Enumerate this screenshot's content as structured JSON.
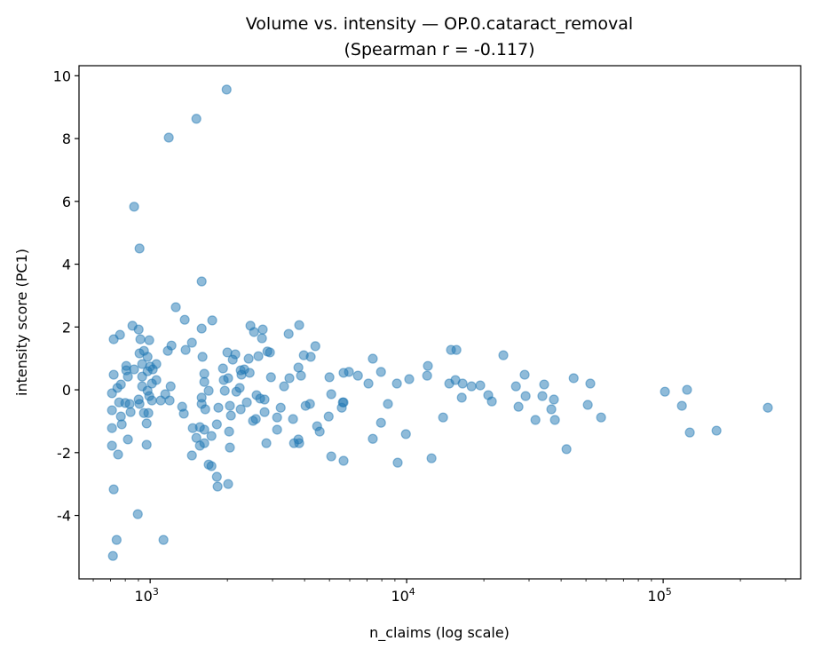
{
  "chart_data": {
    "type": "scatter",
    "title": "Volume vs. intensity — OP.0.cataract_removal",
    "subtitle": "(Spearman r = -0.117)",
    "xlabel": "n_claims (log scale)",
    "ylabel": "intensity score (PC1)",
    "xscale": "log",
    "xlim": [
      528,
      343600
    ],
    "ylim": [
      -6.02,
      10.32
    ],
    "xticks": [
      {
        "value": 1000,
        "base": "10",
        "exp": "3"
      },
      {
        "value": 10000,
        "base": "10",
        "exp": "4"
      },
      {
        "value": 100000,
        "base": "10",
        "exp": "5"
      }
    ],
    "yticks": [
      -4,
      -2,
      0,
      2,
      4,
      6,
      8,
      10
    ],
    "grid": false,
    "marker_color": "#1f77b4",
    "marker_alpha": 0.5,
    "points": [
      [
        1986,
        9.56
      ],
      [
        1514,
        8.63
      ],
      [
        1182,
        8.03
      ],
      [
        866,
        5.83
      ],
      [
        909,
        4.5
      ],
      [
        1588,
        3.45
      ],
      [
        1259,
        2.63
      ],
      [
        1364,
        2.23
      ],
      [
        1746,
        2.21
      ],
      [
        1588,
        1.95
      ],
      [
        853,
        2.04
      ],
      [
        902,
        1.92
      ],
      [
        721,
        1.61
      ],
      [
        763,
        1.75
      ],
      [
        916,
        1.61
      ],
      [
        992,
        1.58
      ],
      [
        1211,
        1.41
      ],
      [
        1172,
        1.24
      ],
      [
        1375,
        1.27
      ],
      [
        1455,
        1.5
      ],
      [
        1600,
        1.05
      ],
      [
        2460,
        2.04
      ],
      [
        2541,
        1.84
      ],
      [
        2748,
        1.92
      ],
      [
        2729,
        1.64
      ],
      [
        3467,
        1.78
      ],
      [
        3811,
        2.06
      ],
      [
        4406,
        1.39
      ],
      [
        3972,
        1.1
      ],
      [
        4227,
        1.05
      ],
      [
        2931,
        1.19
      ],
      [
        2864,
        1.22
      ],
      [
        2642,
        1.07
      ],
      [
        2421,
        0.99
      ],
      [
        2000,
        1.19
      ],
      [
        2148,
        1.13
      ],
      [
        2099,
        0.96
      ],
      [
        1923,
        0.68
      ],
      [
        2254,
        0.62
      ],
      [
        2328,
        0.65
      ],
      [
        2443,
        0.54
      ],
      [
        2270,
        0.48
      ],
      [
        2958,
        0.4
      ],
      [
        3491,
        0.37
      ],
      [
        3784,
        0.71
      ],
      [
        3873,
        0.45
      ],
      [
        3327,
        0.11
      ],
      [
        5000,
        0.4
      ],
      [
        5675,
        0.54
      ],
      [
        5082,
        -0.14
      ],
      [
        5636,
        -0.4
      ],
      [
        5585,
        -0.57
      ],
      [
        4966,
        -0.85
      ],
      [
        4198,
        -0.45
      ],
      [
        4036,
        -0.51
      ],
      [
        3606,
        -0.93
      ],
      [
        4477,
        -1.16
      ],
      [
        4581,
        -1.33
      ],
      [
        5082,
        -2.12
      ],
      [
        5675,
        -2.26
      ],
      [
        3784,
        -1.58
      ],
      [
        3639,
        -1.7
      ],
      [
        3811,
        -1.7
      ],
      [
        2838,
        -1.7
      ],
      [
        3126,
        -1.27
      ],
      [
        3126,
        -0.88
      ],
      [
        3228,
        -0.57
      ],
      [
        2793,
        -0.71
      ],
      [
        2600,
        -0.17
      ],
      [
        2685,
        -0.28
      ],
      [
        2793,
        -0.31
      ],
      [
        2582,
        -0.93
      ],
      [
        2518,
        -0.99
      ],
      [
        2382,
        -0.4
      ],
      [
        2254,
        -0.62
      ],
      [
        2168,
        -0.06
      ],
      [
        2234,
        0.06
      ],
      [
        1954,
        -0.03
      ],
      [
        2014,
        0.37
      ],
      [
        1936,
        0.31
      ],
      [
        2046,
        -0.51
      ],
      [
        2065,
        -0.82
      ],
      [
        2032,
        -1.33
      ],
      [
        2046,
        -1.84
      ],
      [
        1820,
        -1.1
      ],
      [
        1845,
        -0.57
      ],
      [
        1691,
        -0.03
      ],
      [
        1626,
        0.25
      ],
      [
        1626,
        0.51
      ],
      [
        1588,
        -0.25
      ],
      [
        1588,
        -0.45
      ],
      [
        1640,
        -0.62
      ],
      [
        1353,
        -0.76
      ],
      [
        1333,
        -0.54
      ],
      [
        1563,
        -1.19
      ],
      [
        1466,
        -1.22
      ],
      [
        1626,
        -1.27
      ],
      [
        1514,
        -1.53
      ],
      [
        1734,
        -1.47
      ],
      [
        1563,
        -1.78
      ],
      [
        1626,
        -1.7
      ],
      [
        1455,
        -2.09
      ],
      [
        1691,
        -2.38
      ],
      [
        1734,
        -2.43
      ],
      [
        1820,
        -2.77
      ],
      [
        1832,
        -3.08
      ],
      [
        2014,
        -3.0
      ],
      [
        1127,
        -4.78
      ],
      [
        895,
        -3.96
      ],
      [
        721,
        -3.17
      ],
      [
        740,
        -4.78
      ],
      [
        716,
        -5.29
      ],
      [
        721,
        0.48
      ],
      [
        710,
        -0.11
      ],
      [
        745,
        0.06
      ],
      [
        769,
        0.17
      ],
      [
        807,
        0.76
      ],
      [
        807,
        0.62
      ],
      [
        866,
        0.65
      ],
      [
        819,
        0.42
      ],
      [
        931,
        0.42
      ],
      [
        931,
        0.11
      ],
      [
        909,
        1.16
      ],
      [
        946,
        1.24
      ],
      [
        977,
        1.05
      ],
      [
        931,
        0.82
      ],
      [
        1000,
        0.74
      ],
      [
        1057,
        0.82
      ],
      [
        1024,
        0.65
      ],
      [
        977,
        0.59
      ],
      [
        1057,
        0.31
      ],
      [
        1016,
        0.2
      ],
      [
        977,
        -0.03
      ],
      [
        992,
        -0.2
      ],
      [
        902,
        -0.31
      ],
      [
        909,
        -0.45
      ],
      [
        1016,
        -0.34
      ],
      [
        1100,
        -0.34
      ],
      [
        1145,
        -0.14
      ],
      [
        1202,
        0.11
      ],
      [
        1191,
        -0.34
      ],
      [
        757,
        -0.4
      ],
      [
        800,
        -0.42
      ],
      [
        832,
        -0.45
      ],
      [
        839,
        -0.71
      ],
      [
        710,
        -0.65
      ],
      [
        769,
        -0.85
      ],
      [
        775,
        -1.1
      ],
      [
        710,
        -1.22
      ],
      [
        819,
        -1.58
      ],
      [
        710,
        -1.78
      ],
      [
        750,
        -2.06
      ],
      [
        969,
        -1.75
      ],
      [
        946,
        -0.74
      ],
      [
        984,
        -0.74
      ],
      [
        969,
        -1.07
      ],
      [
        5957,
        0.57
      ],
      [
        6457,
        0.45
      ],
      [
        7379,
        0.99
      ],
      [
        7943,
        0.57
      ],
      [
        7096,
        0.2
      ],
      [
        9162,
        0.2
      ],
      [
        10233,
        0.34
      ],
      [
        5675,
        -0.4
      ],
      [
        8453,
        -0.45
      ],
      [
        7943,
        -1.05
      ],
      [
        7379,
        -1.56
      ],
      [
        9931,
        -1.41
      ],
      [
        9226,
        -2.32
      ],
      [
        12500,
        -2.18
      ],
      [
        13870,
        -0.88
      ],
      [
        12100,
        0.76
      ],
      [
        12020,
        0.45
      ],
      [
        14890,
        1.27
      ],
      [
        15630,
        1.27
      ],
      [
        23820,
        1.1
      ],
      [
        14660,
        0.2
      ],
      [
        15490,
        0.31
      ],
      [
        16520,
        0.2
      ],
      [
        17900,
        0.11
      ],
      [
        19360,
        0.14
      ],
      [
        16400,
        -0.25
      ],
      [
        20800,
        -0.17
      ],
      [
        21480,
        -0.37
      ],
      [
        26670,
        0.11
      ],
      [
        28840,
        0.48
      ],
      [
        34360,
        0.17
      ],
      [
        29090,
        -0.2
      ],
      [
        33810,
        -0.2
      ],
      [
        37500,
        -0.31
      ],
      [
        27290,
        -0.54
      ],
      [
        36640,
        -0.62
      ],
      [
        31770,
        -0.96
      ],
      [
        37840,
        -0.96
      ],
      [
        41980,
        -1.89
      ],
      [
        44770,
        0.37
      ],
      [
        52000,
        0.2
      ],
      [
        50820,
        -0.48
      ],
      [
        57280,
        -0.88
      ],
      [
        101600,
        -0.06
      ],
      [
        123900,
        0.0
      ],
      [
        118300,
        -0.51
      ],
      [
        127000,
        -1.36
      ],
      [
        161400,
        -1.3
      ],
      [
        255900,
        -0.57
      ]
    ]
  }
}
